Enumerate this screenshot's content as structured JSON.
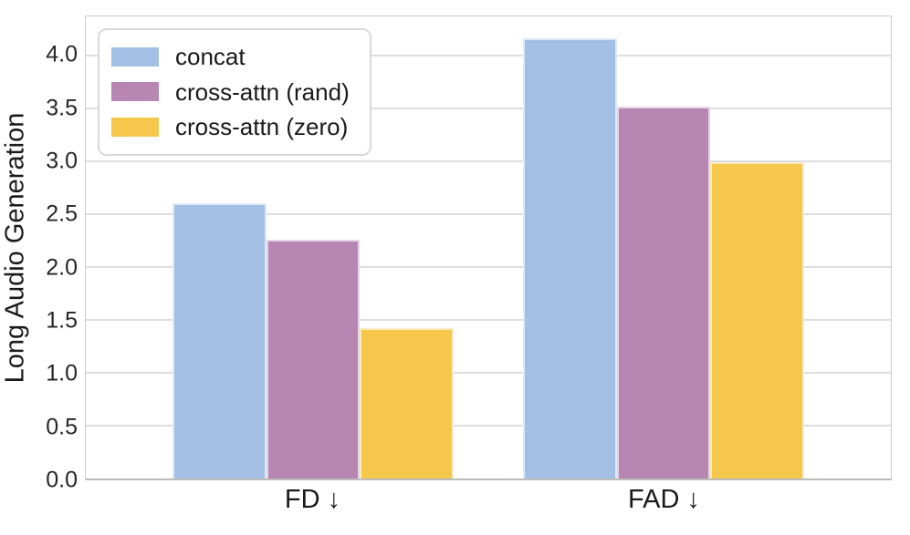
{
  "figure": {
    "background_color": "#ffffff",
    "text_color": "#1a1a1a",
    "grid_color": "#dedede",
    "spine_color": "#cbcbcb"
  },
  "chart_data": {
    "type": "bar",
    "title": "",
    "xlabel": "",
    "ylabel": "Long Audio Generation",
    "categories": [
      "FD ↓",
      "FAD ↓"
    ],
    "series": [
      {
        "name": "concat",
        "color": "#a3c0e4",
        "values": [
          2.6,
          4.16
        ]
      },
      {
        "name": "cross-attn (rand)",
        "color": "#b786b2",
        "values": [
          2.26,
          3.52
        ]
      },
      {
        "name": "cross-attn (zero)",
        "color": "#f5c74b",
        "values": [
          1.42,
          2.99
        ]
      }
    ],
    "ylim": [
      0,
      4.37
    ],
    "yticks": [
      0.0,
      0.5,
      1.0,
      1.5,
      2.0,
      2.5,
      3.0,
      3.5,
      4.0
    ],
    "ytick_labels": [
      "0.0",
      "0.5",
      "1.0",
      "1.5",
      "2.0",
      "2.5",
      "3.0",
      "3.5",
      "4.0"
    ],
    "grid": "horizontal",
    "legend_position": "upper-left"
  }
}
